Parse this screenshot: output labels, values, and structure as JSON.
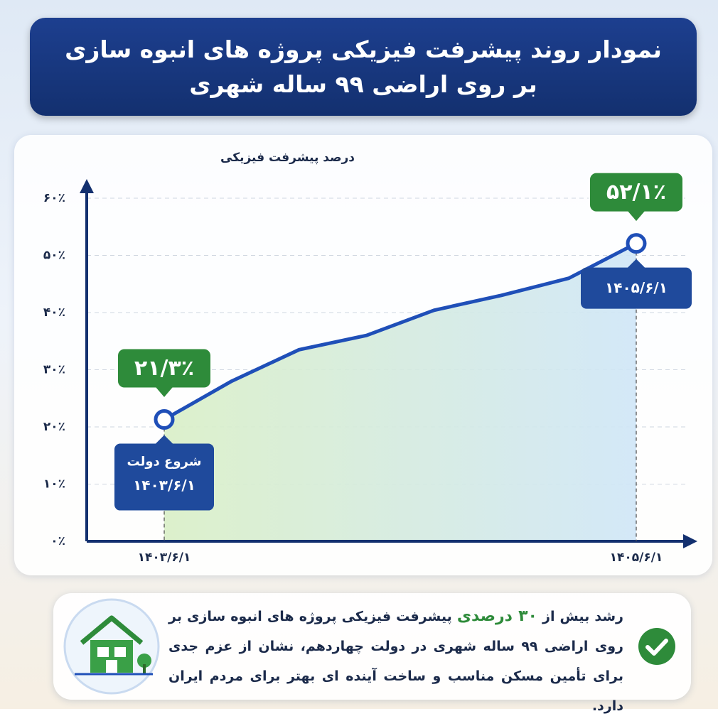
{
  "header": {
    "title_line1": "نمودار روند پیشرفت فیزیکی پروژه های انبوه سازی",
    "title_line2": "بر روی اراضی ۹۹ ساله شهری"
  },
  "chart_data": {
    "type": "line",
    "y_label": "درصد پیشرفت فیزیکی",
    "categories": [
      "۱۴۰۳/۶/۱",
      null,
      null,
      null,
      null,
      null,
      null,
      "۱۴۰۵/۶/۱"
    ],
    "values": [
      21.3,
      28,
      33.5,
      36,
      40.4,
      43,
      46,
      52.1
    ],
    "value_labels": [
      "۲۱/۳٪",
      null,
      null,
      null,
      null,
      null,
      null,
      "۵۲/۱٪"
    ],
    "color": "#1f4fb8",
    "ylim": [
      0,
      60
    ],
    "yticks": [
      {
        "value": 0,
        "label": "۰٪"
      },
      {
        "value": 10,
        "label": "۱۰٪"
      },
      {
        "value": 20,
        "label": "۲۰٪"
      },
      {
        "value": 30,
        "label": "۳۰٪"
      },
      {
        "value": 40,
        "label": "۴۰٪"
      },
      {
        "value": 50,
        "label": "۵۰٪"
      },
      {
        "value": 60,
        "label": "۶۰٪"
      }
    ],
    "grid": true,
    "start_annotation": "شروع دولت"
  },
  "footer": {
    "text_before": "رشد بیش از",
    "highlight": "۳۰ درصدی",
    "text_after": "پیشرفت فیزیکی پروژه های انبوه سازی بر روی اراضی ۹۹ ساله شهری در دولت چهاردهم، نشان از عزم جدی برای تأمین مسکن مناسب و ساخت آینده ای بهتر برای مردم ایران دارد."
  }
}
